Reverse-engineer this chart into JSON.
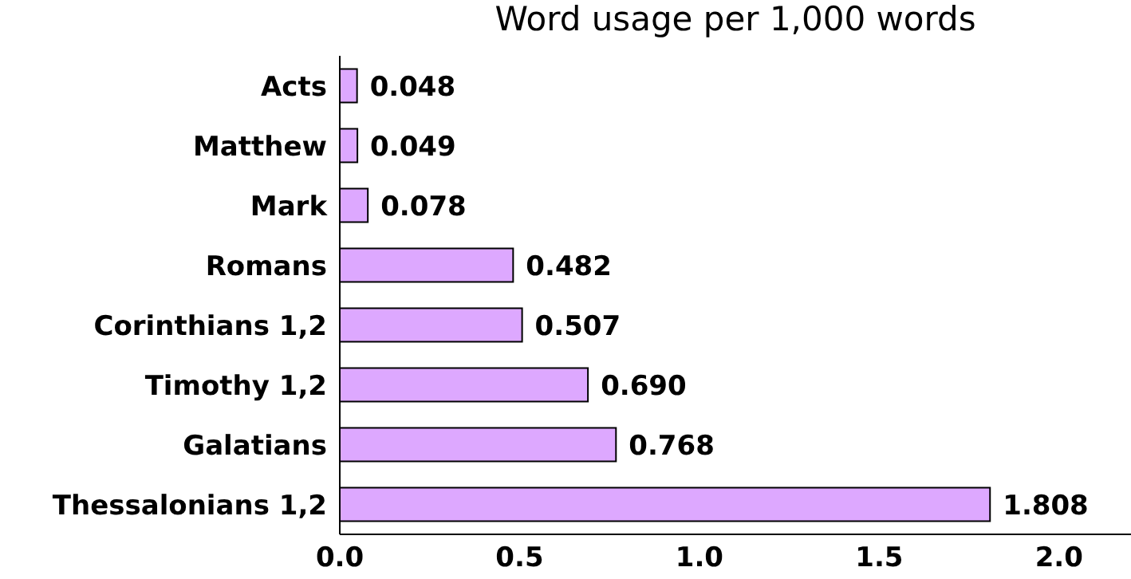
{
  "chart_data": {
    "type": "bar",
    "orientation": "horizontal",
    "title": "Word usage per 1,000 words",
    "categories": [
      "Acts",
      "Matthew",
      "Mark",
      "Romans",
      "Corinthians 1,2",
      "Timothy 1,2",
      "Galatians",
      "Thessalonians 1,2"
    ],
    "values": [
      0.048,
      0.049,
      0.078,
      0.482,
      0.507,
      0.69,
      0.768,
      1.808
    ],
    "value_labels": [
      "0.048",
      "0.049",
      "0.078",
      "0.482",
      "0.507",
      "0.690",
      "0.768",
      "1.808"
    ],
    "color": "#dda8ff",
    "xlim": [
      0,
      2.2
    ],
    "xticks": [
      {
        "value": 0,
        "label": "0.0"
      },
      {
        "value": 0.5,
        "label": "0.5"
      },
      {
        "value": 1,
        "label": "1.0"
      },
      {
        "value": 1.5,
        "label": "1.5"
      },
      {
        "value": 2,
        "label": "2.0"
      }
    ],
    "grid": false,
    "legend": false
  }
}
